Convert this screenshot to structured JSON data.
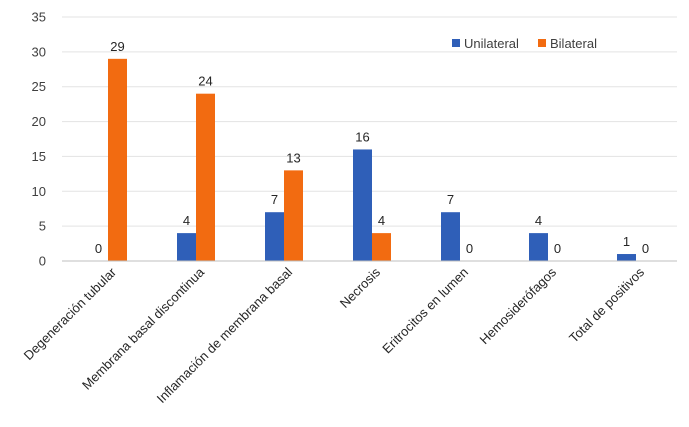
{
  "chart_data": {
    "type": "bar",
    "categories": [
      "Degeneración tubular",
      "Membrana basal discontinua",
      "Inflamación de membrana basal",
      "Necrosis",
      "Eritrocitos en lumen",
      "Hemosiderófagos",
      "Total de positivos"
    ],
    "series": [
      {
        "name": "Unilateral",
        "color": "#2f5fb8",
        "values": [
          0,
          4,
          7,
          16,
          7,
          4,
          1
        ]
      },
      {
        "name": "Bilateral",
        "color": "#f26b11",
        "values": [
          29,
          24,
          13,
          4,
          0,
          0,
          0
        ]
      }
    ],
    "ylim": [
      0,
      35
    ],
    "yticks": [
      0,
      5,
      10,
      15,
      20,
      25,
      30,
      35
    ],
    "grid": true,
    "legend": "top-right",
    "title": "",
    "xlabel": "",
    "ylabel": ""
  }
}
